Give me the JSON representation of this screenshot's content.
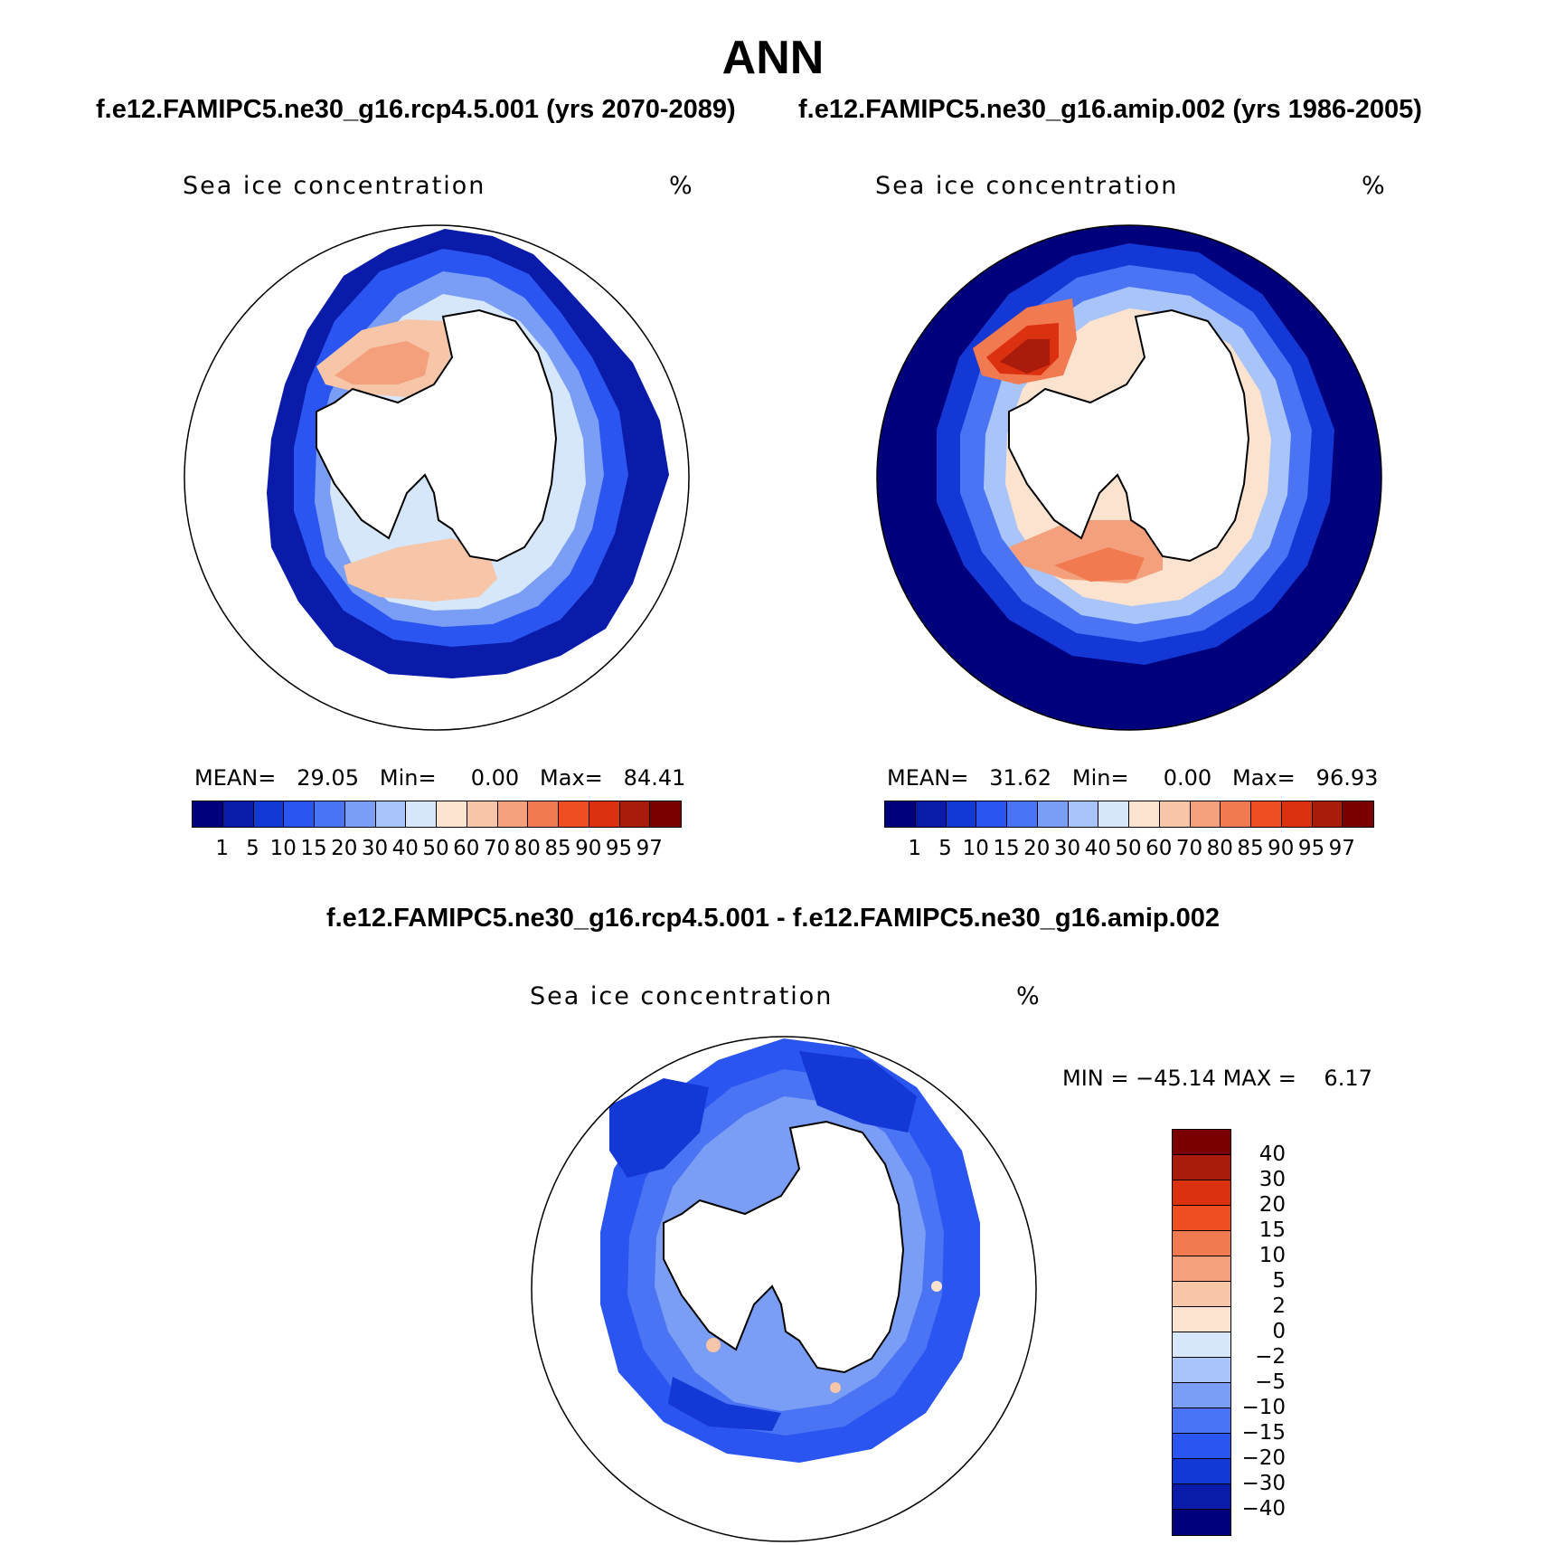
{
  "title": "ANN",
  "subtitle_left": "f.e12.FAMIPC5.ne30_g16.rcp4.5.001 (yrs 2070-2089)",
  "subtitle_right": "f.e12.FAMIPC5.ne30_g16.amip.002 (yrs 1986-2005)",
  "diff_title": "f.e12.FAMIPC5.ne30_g16.rcp4.5.001 - f.e12.FAMIPC5.ne30_g16.amip.002",
  "panels": [
    {
      "variable": "Sea ice concentration",
      "units": "%",
      "stats": {
        "mean_label": "MEAN=",
        "mean": "29.05",
        "min_label": "Min=",
        "min": "0.00",
        "max_label": "Max=",
        "max": "84.41"
      }
    },
    {
      "variable": "Sea ice concentration",
      "units": "%",
      "stats": {
        "mean_label": "MEAN=",
        "mean": "31.62",
        "min_label": "Min=",
        "min": "0.00",
        "max_label": "Max=",
        "max": "96.93"
      }
    },
    {
      "variable": "Sea ice concentration",
      "units": "%",
      "stats": {
        "min_label": "MIN =",
        "min": "−45.14",
        "max_label": "MAX =",
        "max": "6.17"
      }
    }
  ],
  "colorbar_levels": [
    "1",
    "5",
    "10",
    "15",
    "20",
    "30",
    "40",
    "50",
    "60",
    "70",
    "80",
    "85",
    "90",
    "95",
    "97"
  ],
  "colorbar_colors": [
    "#00007d",
    "#0a1ba9",
    "#1438d6",
    "#2a55f1",
    "#4a74f3",
    "#7a9ef5",
    "#a8c4f8",
    "#d6e6fb",
    "#fbe3d0",
    "#f7c5a8",
    "#f4a07d",
    "#f27a50",
    "#ef4e22",
    "#dc3110",
    "#a91b0a",
    "#7a0000"
  ],
  "diff_levels": [
    "40",
    "30",
    "20",
    "15",
    "10",
    "5",
    "2",
    "0",
    "−2",
    "−5",
    "−10",
    "−15",
    "−20",
    "−30",
    "−40"
  ],
  "diff_colors": [
    "#7a0000",
    "#a91b0a",
    "#dc3110",
    "#ef4e22",
    "#f27a50",
    "#f4a07d",
    "#f7c5a8",
    "#fbe3d0",
    "#d6e6fb",
    "#a8c4f8",
    "#7a9ef5",
    "#4a74f3",
    "#2a55f1",
    "#1438d6",
    "#0a1ba9",
    "#00007d"
  ],
  "chart_data": [
    {
      "type": "heatmap",
      "title": "Sea ice concentration",
      "units": "%",
      "projection": "south polar stereographic",
      "stats": {
        "mean": 29.05,
        "min": 0.0,
        "max": 84.41
      },
      "levels": [
        1,
        5,
        10,
        15,
        20,
        30,
        40,
        50,
        60,
        70,
        80,
        85,
        90,
        95,
        97
      ]
    },
    {
      "type": "heatmap",
      "title": "Sea ice concentration",
      "units": "%",
      "projection": "south polar stereographic",
      "stats": {
        "mean": 31.62,
        "min": 0.0,
        "max": 96.93
      },
      "levels": [
        1,
        5,
        10,
        15,
        20,
        30,
        40,
        50,
        60,
        70,
        80,
        85,
        90,
        95,
        97
      ]
    },
    {
      "type": "heatmap",
      "title": "Sea ice concentration",
      "units": "%",
      "projection": "south polar stereographic",
      "stats": {
        "min": -45.14,
        "max": 6.17
      },
      "levels": [
        -40,
        -30,
        -20,
        -15,
        -10,
        -5,
        -2,
        0,
        2,
        5,
        10,
        15,
        20,
        30,
        40
      ]
    }
  ]
}
